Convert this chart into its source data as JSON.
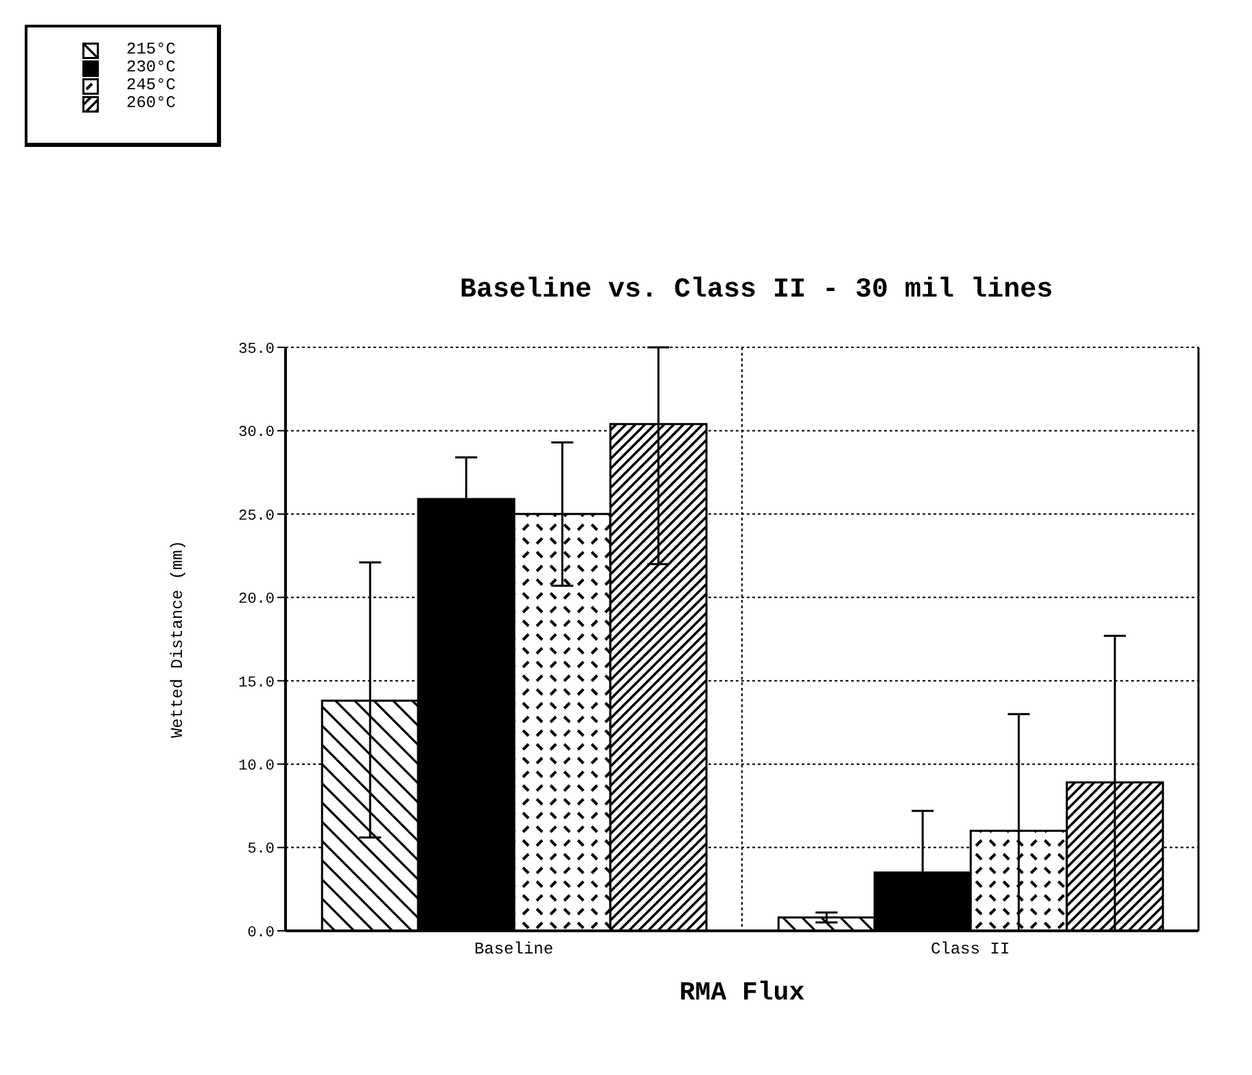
{
  "chart_data": {
    "type": "bar",
    "title": "Baseline vs. Class II - 30 mil lines",
    "xlabel": "RMA Flux",
    "ylabel": "Wetted Distance (mm)",
    "categories": [
      "Baseline",
      "Class II"
    ],
    "series": [
      {
        "name": "215°C",
        "color": "#000000",
        "values": [
          13.8,
          0.8
        ],
        "errors": [
          [
            5.6,
            22.1
          ],
          0.3
        ]
      },
      {
        "name": "230°C",
        "color": "#000000",
        "values": [
          25.9,
          3.5
        ],
        "errors": [
          2.5,
          [
            0.0,
            7.2
          ]
        ]
      },
      {
        "name": "245°C",
        "color": "#000000",
        "values": [
          25.0,
          6.0
        ],
        "errors": [
          4.3,
          [
            0.0,
            13.0
          ]
        ]
      },
      {
        "name": "260°C",
        "color": "#000000",
        "values": [
          30.4,
          8.9
        ],
        "errors": [
          [
            22.0,
            35.0
          ],
          [
            0.0,
            17.7
          ]
        ]
      }
    ],
    "ylim": [
      0,
      35
    ],
    "yticks": [
      {
        "value": 0,
        "label": "0.0"
      },
      {
        "value": 5,
        "label": "5.0"
      },
      {
        "value": 10,
        "label": "10.0"
      },
      {
        "value": 15,
        "label": "15.0"
      },
      {
        "value": 20,
        "label": "20.0"
      },
      {
        "value": 25,
        "label": "25.0"
      },
      {
        "value": 30,
        "label": "30.0"
      },
      {
        "value": 35,
        "label": "35.0"
      }
    ],
    "grid": true,
    "legend": "top left"
  }
}
